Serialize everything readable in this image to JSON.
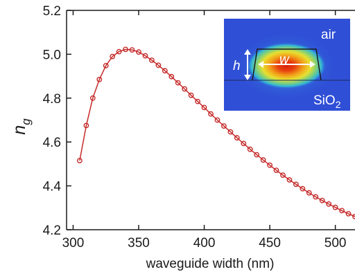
{
  "colors": {
    "series": "#c62828",
    "axis": "#1a1a1a"
  },
  "chart_data": {
    "type": "line",
    "title": "",
    "xlabel": "waveguide width (nm)",
    "ylabel_main": "n",
    "ylabel_sub": "g",
    "xlim": [
      295,
      515
    ],
    "ylim": [
      4.2,
      5.2
    ],
    "xticks": [
      "300",
      "350",
      "400",
      "450",
      "500"
    ],
    "yticks": [
      "4.2",
      "4.4",
      "4.6",
      "4.8",
      "5.0",
      "5.2"
    ],
    "grid": false,
    "marker": "open-circle",
    "series": [
      {
        "x": [
          305,
          310,
          315,
          320,
          325,
          330,
          335,
          340,
          345,
          350,
          355,
          360,
          365,
          370,
          375,
          380,
          385,
          390,
          395,
          400,
          405,
          410,
          415,
          420,
          425,
          430,
          435,
          440,
          445,
          450,
          455,
          460,
          465,
          470,
          475,
          480,
          485,
          490,
          495,
          500,
          505,
          510,
          515
        ],
        "y": [
          4.515,
          4.675,
          4.8,
          4.885,
          4.948,
          4.99,
          5.012,
          5.022,
          5.02,
          5.01,
          4.993,
          4.973,
          4.95,
          4.925,
          4.898,
          4.87,
          4.842,
          4.813,
          4.785,
          4.757,
          4.728,
          4.7,
          4.673,
          4.646,
          4.619,
          4.593,
          4.567,
          4.542,
          4.518,
          4.494,
          4.471,
          4.449,
          4.427,
          4.407,
          4.387,
          4.368,
          4.35,
          4.333,
          4.317,
          4.302,
          4.287,
          4.273,
          4.26
        ]
      }
    ],
    "inset": {
      "label_air": "air",
      "label_sio2_main": "SiO",
      "label_sio2_sub": "2",
      "label_w": "w",
      "label_h": "h"
    }
  }
}
